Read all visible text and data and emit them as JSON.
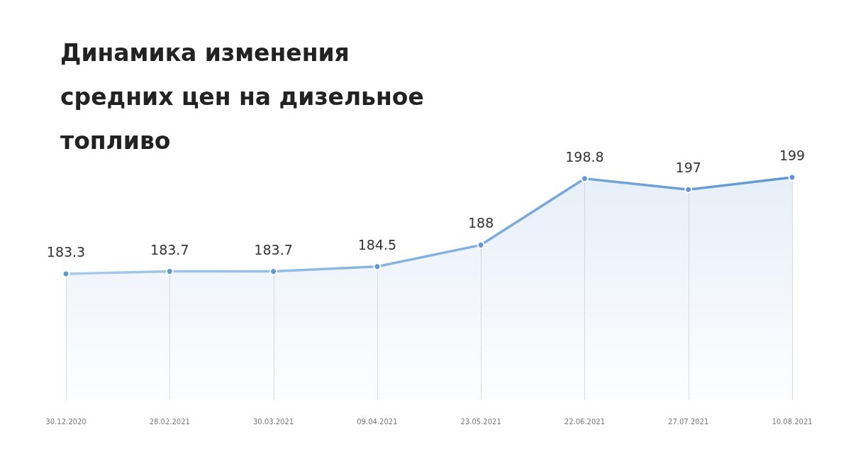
{
  "chart_data": {
    "type": "area",
    "title": "Динамика изменения средних цен на дизельное топливо",
    "categories": [
      "30.12.2020",
      "28.02.2021",
      "30.03.2021",
      "09.04.2021",
      "23.05.2021",
      "22.06.2021",
      "27.07.2021",
      "10.08.2021"
    ],
    "values": [
      183.3,
      183.7,
      183.7,
      184.5,
      188,
      198.8,
      197,
      199
    ],
    "color": "#5f97d2",
    "data_labels": true,
    "marker": "circle"
  }
}
